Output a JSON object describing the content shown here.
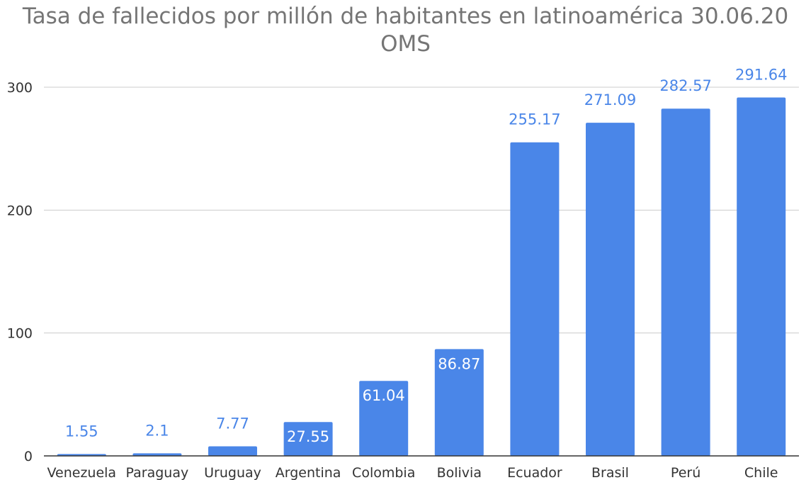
{
  "chart_data": {
    "type": "bar",
    "title": "Tasa de fallecidos por millón de habitantes en latinoamérica 30.06.20 OMS",
    "xlabel": "",
    "ylabel": "",
    "categories": [
      "Venezuela",
      "Paraguay",
      "Uruguay",
      "Argentina",
      "Colombia",
      "Bolivia",
      "Ecuador",
      "Brasil",
      "Perú",
      "Chile"
    ],
    "series": [
      {
        "values": [
          1.55,
          2.1,
          7.77,
          27.55,
          61.04,
          86.87,
          255.17,
          271.09,
          282.57,
          291.64
        ],
        "labels": [
          "1.55",
          "2.1",
          "7.77",
          "27.55",
          "61.04",
          "86.87",
          "255.17",
          "271.09",
          "282.57",
          "291.64"
        ]
      }
    ],
    "ylim": [
      0,
      300
    ],
    "yticks": [
      0,
      100,
      200,
      300
    ],
    "grid": true,
    "legend": "none",
    "colors": {
      "bar": "#4a86e8",
      "label_outside": "#4a86e8",
      "label_inside": "#ffffff",
      "grid": "#cccccc",
      "axis": "#333333",
      "title": "#757575"
    }
  }
}
